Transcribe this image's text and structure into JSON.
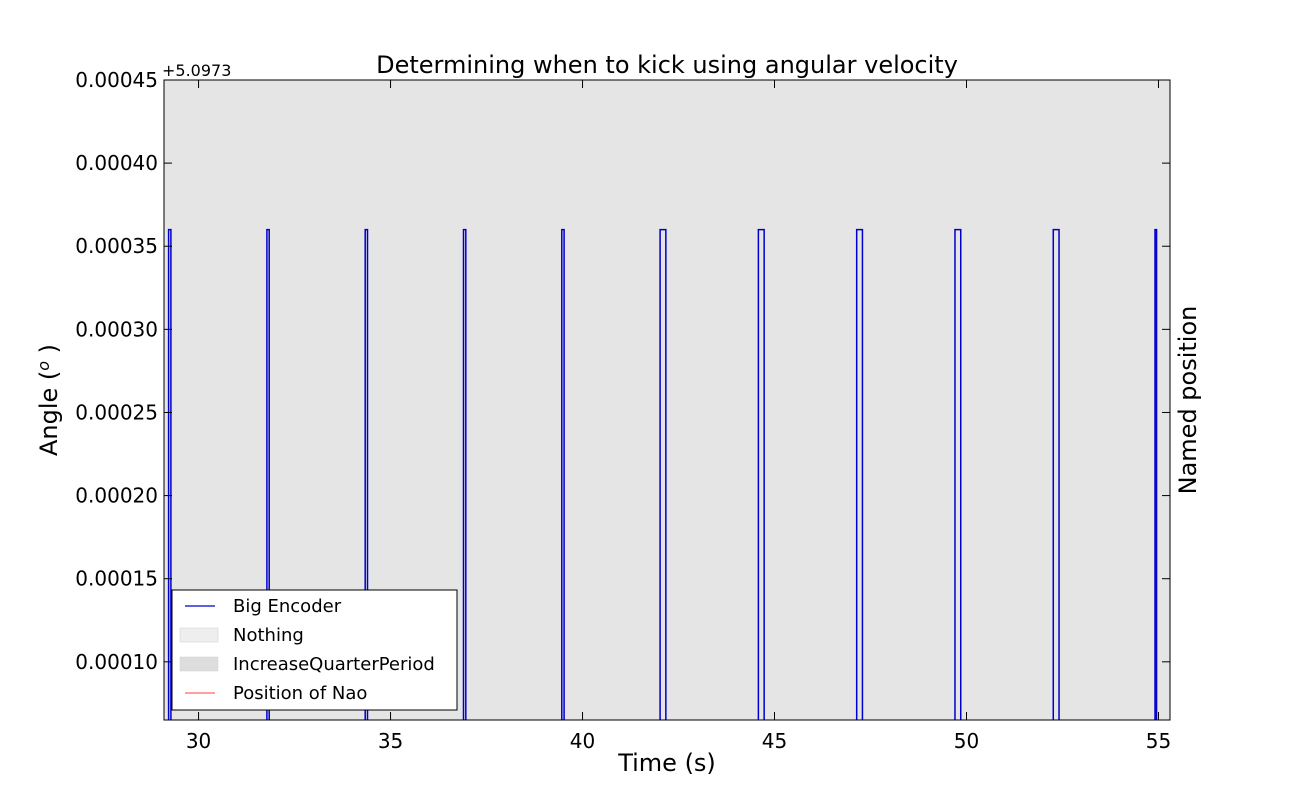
{
  "chart_data": {
    "type": "line",
    "title": "Determining when to kick using angular velocity",
    "xlabel": "Time (s)",
    "ylabel": "Angle (",
    "ylabel_symbol": "o",
    "ylabel_close": " )",
    "ylabel_right": "Named position",
    "y_offset_label": "+5.0973",
    "xlim": [
      29.1,
      55.3
    ],
    "ylim": [
      6.5e-05,
      0.00045
    ],
    "x_ticks": [
      30,
      35,
      40,
      45,
      50,
      55
    ],
    "x_tick_labels": [
      "30",
      "35",
      "40",
      "45",
      "50",
      "55"
    ],
    "y_ticks": [
      0.0001,
      0.00015,
      0.0002,
      0.00025,
      0.0003,
      0.00035,
      0.0004,
      0.00045
    ],
    "y_tick_labels": [
      "0.00010",
      "0.00015",
      "0.00020",
      "0.00025",
      "0.00030",
      "0.00035",
      "0.00040",
      "0.00045"
    ],
    "grid": false,
    "background_color": "#e5e5e5",
    "series": [
      {
        "name": "Big Encoder",
        "color": "#0000cc",
        "style": "step",
        "baseline": 6.5e-05,
        "high_value": 0.00036,
        "pulses": [
          [
            29.22,
            29.28
          ],
          [
            31.78,
            31.84
          ],
          [
            34.34,
            34.4
          ],
          [
            36.9,
            36.96
          ],
          [
            39.46,
            39.52
          ],
          [
            42.02,
            42.17
          ],
          [
            44.58,
            44.73
          ],
          [
            47.14,
            47.29
          ],
          [
            49.7,
            49.85
          ],
          [
            52.26,
            52.41
          ],
          [
            54.91,
            54.95
          ]
        ]
      }
    ],
    "legend": {
      "placement": "lower-left",
      "entries": [
        {
          "label": "Big Encoder",
          "kind": "line",
          "color": "#0000cc"
        },
        {
          "label": "Nothing",
          "kind": "patch",
          "color": "#eeeeee"
        },
        {
          "label": "IncreaseQuarterPeriod",
          "kind": "patch",
          "color": "#dddddd"
        },
        {
          "label": "Position of Nao",
          "kind": "line",
          "color": "#ff6666"
        }
      ]
    }
  }
}
